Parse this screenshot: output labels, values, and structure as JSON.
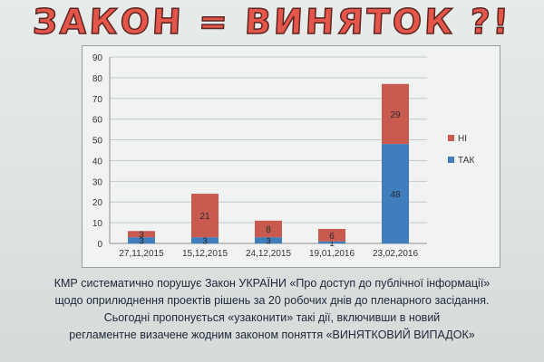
{
  "headline": "ЗАКОН = ВИНЯТОК ?!",
  "chart_data": {
    "type": "bar",
    "stacked": true,
    "categories": [
      "27,11,2015",
      "15,12,2015",
      "24,12,2015",
      "19,01,2016",
      "23,02,2016"
    ],
    "series": [
      {
        "name": "ТАК",
        "values": [
          3,
          3,
          3,
          1,
          48
        ],
        "color": "#3f7dbd"
      },
      {
        "name": "НІ",
        "values": [
          3,
          21,
          8,
          6,
          29
        ],
        "color": "#c85a50"
      }
    ],
    "ylim": [
      0,
      90
    ],
    "yticks": [
      0,
      10,
      20,
      30,
      40,
      50,
      60,
      70,
      80,
      90
    ],
    "grid": true,
    "legend": "right",
    "xlabel": "",
    "ylabel": ""
  },
  "caption": {
    "line1": "КМР систематично порушує Закон УКРАЇНИ «Про доступ до публічної інформації»",
    "line2": "щодо оприлюднення проектів рішень за 20 робочих днів до пленарного засідання.",
    "line3": "Сьогодні пропонується «узаконити» такі дії, включивши в новий",
    "line4": "регламентне визачене жодним законом поняття «ВИНЯТКОВИЙ ВИПАДОК»"
  }
}
